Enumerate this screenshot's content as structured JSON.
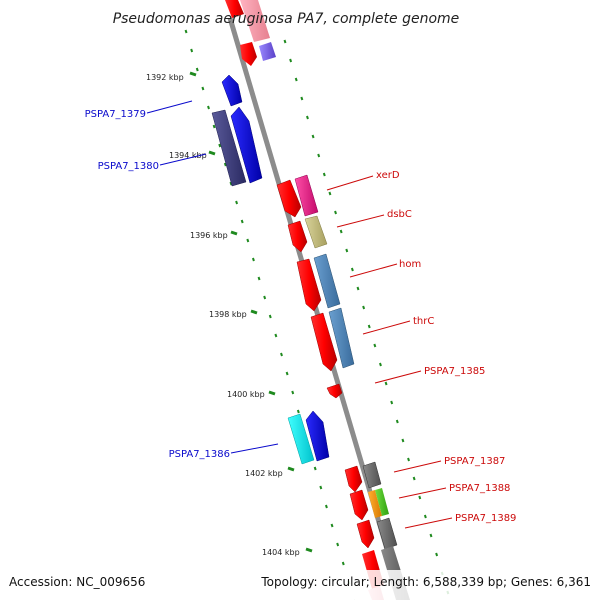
{
  "title": "Pseudomonas aeruginosa PA7, complete genome",
  "footer": {
    "accession": "Accession: NC_009656",
    "summary": "Topology: circular; Length: 6,588,339 bp; Genes: 6,361"
  },
  "colors": {
    "backbone": "#8c8c8c",
    "tick": "#1f8a1f",
    "label_forward": "#0a0acc",
    "label_reverse": "#cc0a0a"
  },
  "ticks": [
    "1392 kbp",
    "1394 kbp",
    "1396 kbp",
    "1398 kbp",
    "1400 kbp",
    "1402 kbp",
    "1404 kbp"
  ],
  "gene_labels": {
    "left": [
      "PSPA7_1379",
      "PSPA7_1380",
      "PSPA7_1386"
    ],
    "right": [
      "xerD",
      "dsbC",
      "hom",
      "thrC",
      "PSPA7_1385",
      "PSPA7_1387",
      "PSPA7_1388",
      "PSPA7_1389"
    ]
  }
}
